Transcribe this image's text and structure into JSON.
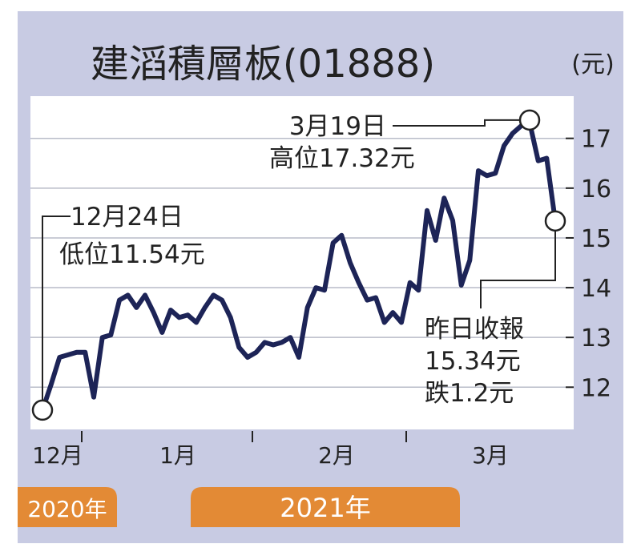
{
  "chart_data": {
    "type": "line",
    "title": "建滔積層板(01888)",
    "unit_label": "(元)",
    "ylim": [
      11.2,
      17.8
    ],
    "y_ticks": [
      12,
      13,
      14,
      15,
      16,
      17
    ],
    "y_tick_labels": [
      "12",
      "13",
      "14",
      "15",
      "16",
      "17"
    ],
    "month_labels": [
      "12月",
      "1月",
      "2月",
      "3月"
    ],
    "year_labels": [
      "2020年",
      "2021年"
    ],
    "series": [
      {
        "values": [
          11.54,
          12.05,
          12.6,
          12.65,
          12.7,
          12.7,
          11.8,
          13.0,
          13.05,
          13.75,
          13.85,
          13.6,
          13.85,
          13.5,
          13.1,
          13.55,
          13.4,
          13.45,
          13.3,
          13.6,
          13.85,
          13.75,
          13.4,
          12.8,
          12.6,
          12.7,
          12.9,
          12.85,
          12.9,
          13.0,
          12.6,
          13.6,
          14.0,
          13.95,
          14.9,
          15.05,
          14.5,
          14.1,
          13.75,
          13.8,
          13.3,
          13.5,
          13.3,
          14.1,
          13.95,
          15.55,
          14.95,
          15.8,
          15.35,
          14.05,
          14.55,
          16.35,
          16.25,
          16.3,
          16.85,
          17.1,
          17.25,
          17.32,
          16.55,
          16.6,
          15.34
        ]
      }
    ],
    "line_color": "#1d2457",
    "annotations": [
      {
        "lines": [
          "3月19日",
          "高位17.32元"
        ],
        "target_index": 57
      },
      {
        "lines": [
          "12月24日",
          "低位11.54元"
        ],
        "target_index": 0
      },
      {
        "lines": [
          "昨日收報",
          "15.34元",
          "跌1.2元"
        ],
        "target_index": 60
      }
    ]
  },
  "colors": {
    "frame_bg": "#c8cbe3",
    "plot_bg": "#ffffff",
    "grid": "#b9bcc8",
    "line": "#1d2457",
    "year_badge": "#e38a35",
    "text": "#222222"
  }
}
